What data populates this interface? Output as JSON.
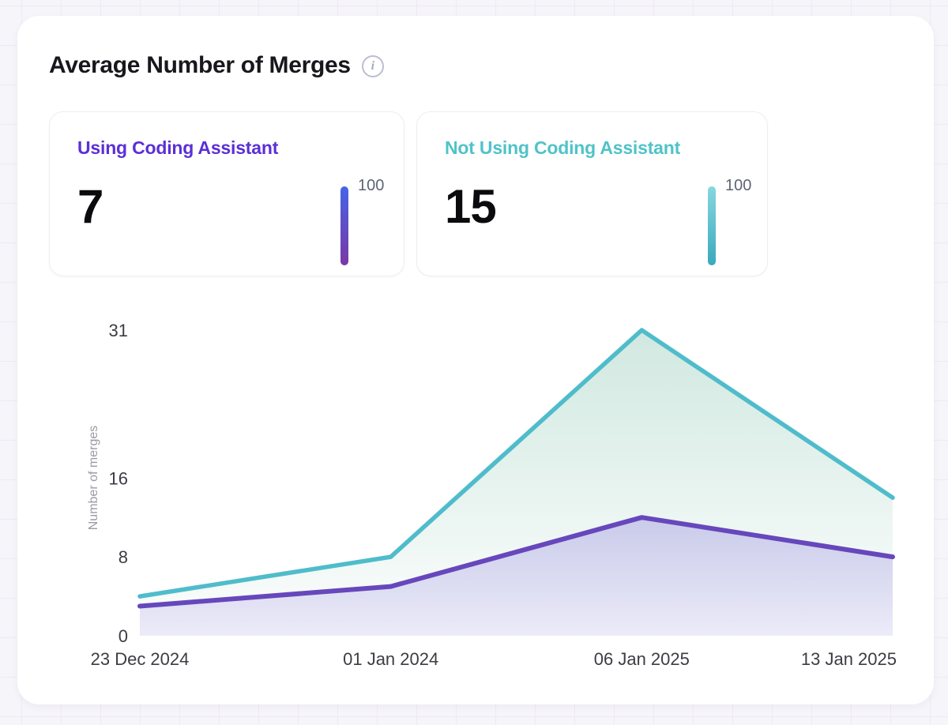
{
  "header": {
    "title": "Average Number of Merges",
    "info_icon_glyph": "i"
  },
  "stat_cards": [
    {
      "label": "Using Coding Assistant",
      "value": "7",
      "scale_max": "100",
      "accent_color": "#5b2fd6",
      "bar_gradient_top": "#4465e7",
      "bar_gradient_bottom": "#7a38a6"
    },
    {
      "label": "Not Using Coding Assistant",
      "value": "15",
      "scale_max": "100",
      "accent_color": "#4fc3c9",
      "bar_gradient_top": "#87d7de",
      "bar_gradient_bottom": "#3ba9bc"
    }
  ],
  "chart_data": {
    "type": "area",
    "title": "Average Number of Merges",
    "x": [
      "23 Dec 2024",
      "01 Jan 2024",
      "06 Jan 2025",
      "13 Jan 2025"
    ],
    "series": [
      {
        "name": "Not Using Coding Assistant",
        "values": [
          4,
          8,
          31,
          14
        ],
        "line_color": "#4fbccb",
        "fill_top": "rgba(111,184,160,0.32)",
        "fill_bottom": "rgba(111,184,160,0.02)"
      },
      {
        "name": "Using Coding Assistant",
        "values": [
          3,
          5,
          12,
          8
        ],
        "line_color": "#6747bc",
        "fill_top": "rgba(120,100,215,0.30)",
        "fill_bottom": "rgba(120,100,215,0.12)"
      }
    ],
    "ylabel": "Number of merges",
    "xlabel": "",
    "yticks": [
      0,
      8,
      16,
      31
    ],
    "ylim": [
      0,
      31
    ],
    "grid": false,
    "legend_position": "none",
    "tick_color": "#3c3c43",
    "ylabel_color": "#9b9ba3"
  }
}
